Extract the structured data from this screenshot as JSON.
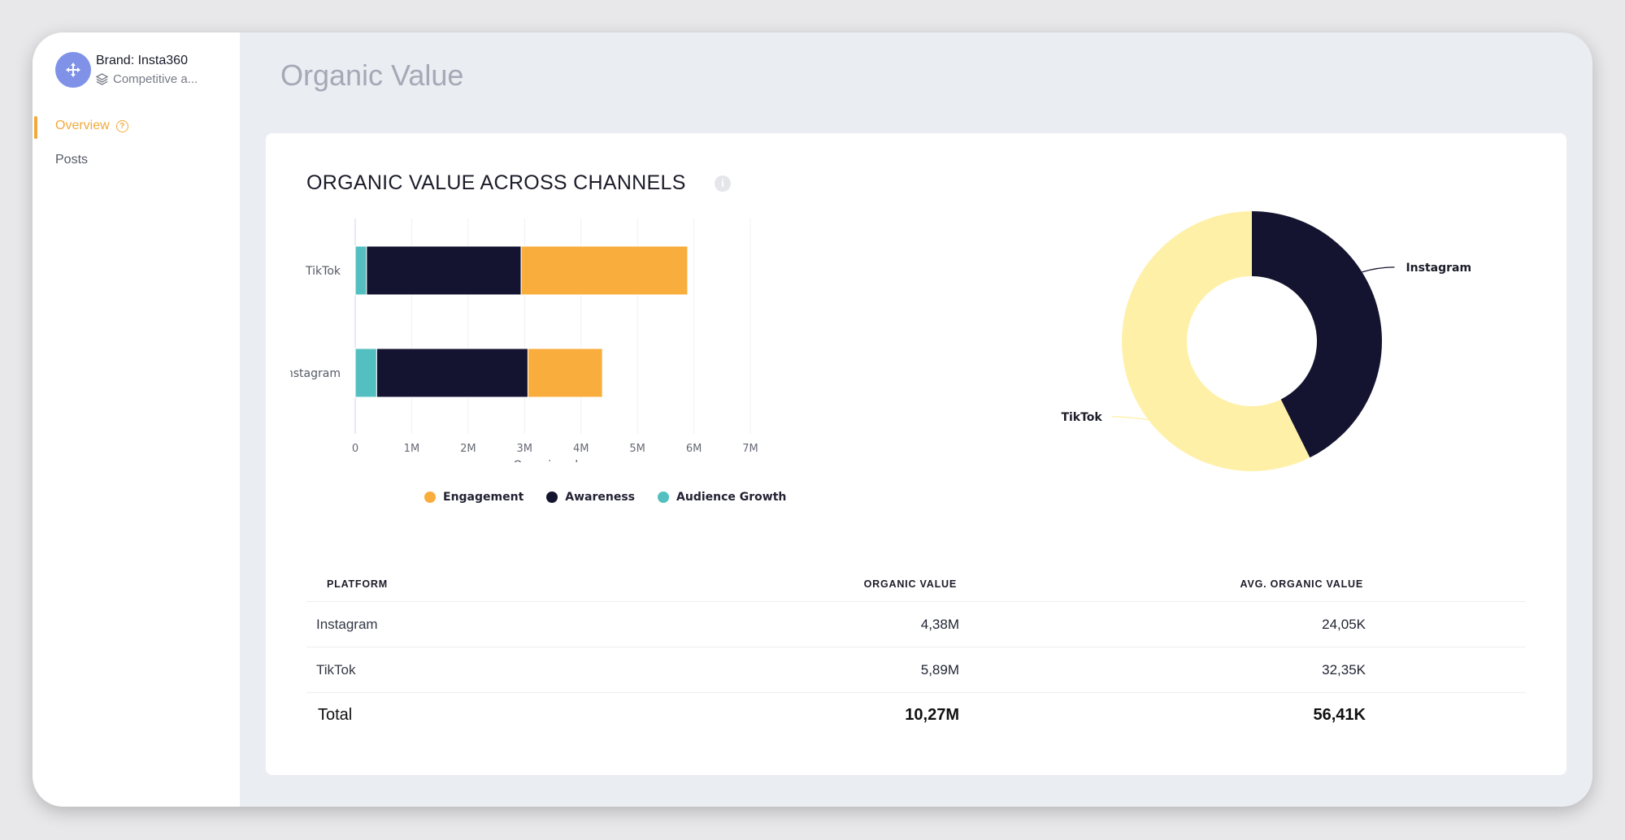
{
  "sidebar": {
    "brand_name": "Brand: Insta360",
    "brand_sub": "Competitive a...",
    "nav": [
      {
        "label": "Overview",
        "active": true
      },
      {
        "label": "Posts",
        "active": false
      }
    ],
    "accent_color": "#f2a93b"
  },
  "page": {
    "title": "Organic Value"
  },
  "card": {
    "title": "ORGANIC VALUE ACROSS CHANNELS",
    "info_icon": "info-icon"
  },
  "chart_data": [
    {
      "type": "bar",
      "orientation": "horizontal",
      "stacked": true,
      "categories": [
        "TikTok",
        "Instagram"
      ],
      "series": [
        {
          "name": "Audience Growth",
          "color": "#54bfc1",
          "values": [
            0.2,
            0.38
          ]
        },
        {
          "name": "Awareness",
          "color": "#141430",
          "values": [
            2.74,
            2.68
          ]
        },
        {
          "name": "Engagement",
          "color": "#f9ad3c",
          "values": [
            2.95,
            1.32
          ]
        }
      ],
      "xlabel": "Organic value",
      "xlim": [
        0,
        7
      ],
      "ticks": [
        "0",
        "1M",
        "2M",
        "3M",
        "4M",
        "5M",
        "6M",
        "7M"
      ],
      "legend": [
        "Engagement",
        "Awareness",
        "Audience Growth"
      ],
      "legend_position": "bottom",
      "grid": true
    },
    {
      "type": "pie",
      "donut": true,
      "labels": [
        "Instagram",
        "TikTok"
      ],
      "values": [
        4.38,
        5.89
      ],
      "colors": [
        "#141430",
        "#fff0a8"
      ]
    }
  ],
  "table": {
    "headers": [
      "PLATFORM",
      "ORGANIC VALUE",
      "AVG. ORGANIC VALUE"
    ],
    "rows": [
      {
        "platform": "Instagram",
        "organic": "4,38M",
        "avg": "24,05K"
      },
      {
        "platform": "TikTok",
        "organic": "5,89M",
        "avg": "32,35K"
      }
    ],
    "total": {
      "platform": "Total",
      "organic": "10,27M",
      "avg": "56,41K"
    }
  }
}
